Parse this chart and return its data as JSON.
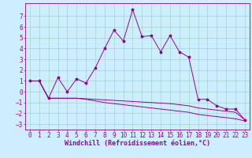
{
  "xlabel": "Windchill (Refroidissement éolien,°C)",
  "background_color": "#cceeff",
  "line_color": "#990099",
  "grid_color": "#99ccbb",
  "xlim": [
    -0.5,
    23.5
  ],
  "ylim": [
    -3.5,
    8.2
  ],
  "yticks": [
    -3,
    -2,
    -1,
    0,
    1,
    2,
    3,
    4,
    5,
    6,
    7
  ],
  "xticks": [
    0,
    1,
    2,
    3,
    4,
    5,
    6,
    7,
    8,
    9,
    10,
    11,
    12,
    13,
    14,
    15,
    16,
    17,
    18,
    19,
    20,
    21,
    22,
    23
  ],
  "line1_x": [
    0,
    1,
    2,
    3,
    4,
    5,
    6,
    7,
    8,
    9,
    10,
    11,
    12,
    13,
    14,
    15,
    16,
    17,
    18,
    19,
    20,
    21,
    22,
    23
  ],
  "line1_y": [
    1.0,
    1.0,
    -0.6,
    1.3,
    0.0,
    1.2,
    0.8,
    2.2,
    4.0,
    5.7,
    4.7,
    7.6,
    5.1,
    5.2,
    3.7,
    5.2,
    3.7,
    3.2,
    -0.7,
    -0.7,
    -1.3,
    -1.6,
    -1.6,
    -2.6
  ],
  "line2_x": [
    0,
    1,
    2,
    3,
    4,
    5,
    6,
    7,
    8,
    9,
    10,
    11,
    12,
    13,
    14,
    15,
    16,
    17,
    18,
    19,
    20,
    21,
    22,
    23
  ],
  "line2_y": [
    1.0,
    1.0,
    -0.6,
    -0.6,
    -0.6,
    -0.6,
    -0.65,
    -0.7,
    -0.75,
    -0.8,
    -0.85,
    -0.9,
    -0.95,
    -1.0,
    -1.05,
    -1.1,
    -1.2,
    -1.3,
    -1.5,
    -1.6,
    -1.7,
    -1.8,
    -1.9,
    -2.6
  ],
  "line3_x": [
    0,
    1,
    2,
    3,
    4,
    5,
    6,
    7,
    8,
    9,
    10,
    11,
    12,
    13,
    14,
    15,
    16,
    17,
    18,
    19,
    20,
    21,
    22,
    23
  ],
  "line3_y": [
    1.0,
    1.0,
    -0.6,
    -0.6,
    -0.6,
    -0.6,
    -0.7,
    -0.85,
    -1.0,
    -1.1,
    -1.2,
    -1.3,
    -1.4,
    -1.5,
    -1.6,
    -1.7,
    -1.8,
    -1.9,
    -2.1,
    -2.2,
    -2.3,
    -2.4,
    -2.5,
    -2.7
  ],
  "xlabel_fontsize": 6,
  "tick_fontsize": 5.5
}
